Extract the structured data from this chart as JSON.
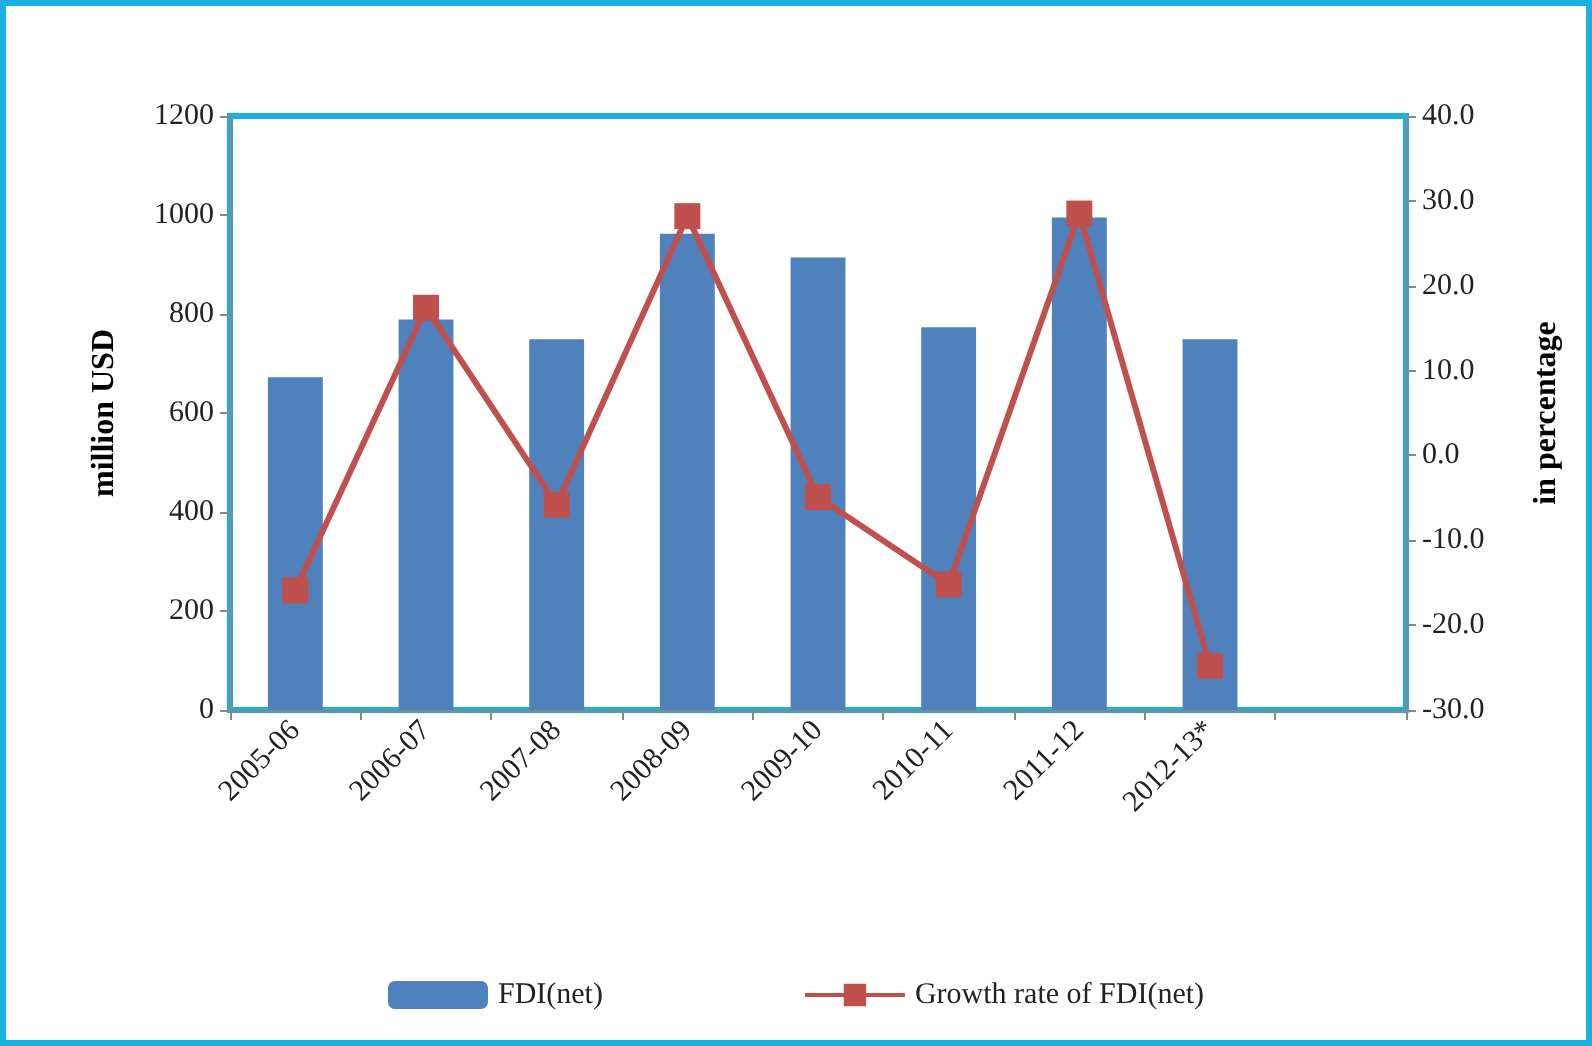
{
  "chart_data": {
    "type": "bar",
    "ylabel": "million USD",
    "y2label": "in percentage",
    "categories": [
      "2005-06",
      "2006-07",
      "2007-08",
      "2008-09",
      "2009-10",
      "2010-11",
      "2011-12",
      "2012-13*",
      null
    ],
    "series": [
      {
        "name": "FDI(net)",
        "color": "#4f81bd",
        "values": [
          672,
          789,
          749,
          962,
          914,
          773,
          995,
          749,
          null
        ]
      },
      {
        "name": "Growth rate of FDI(net)",
        "type": "line",
        "axis": "y2",
        "color": "#c0504d",
        "marker": "square",
        "values": [
          -15.9,
          17.4,
          -5.8,
          28.2,
          -4.9,
          -15.2,
          28.5,
          -24.8,
          null
        ]
      }
    ],
    "ylim": [
      0,
      1200
    ],
    "yticks": [
      0,
      200,
      400,
      600,
      800,
      1000,
      1200
    ],
    "y2lim": [
      -30,
      40
    ],
    "y2ticks": [
      {
        "value": -30,
        "label": "-30.0"
      },
      {
        "value": -20,
        "label": "-20.0"
      },
      {
        "value": -10,
        "label": "-10.0"
      },
      {
        "value": 0,
        "label": "0.0"
      },
      {
        "value": 10,
        "label": "10.0"
      },
      {
        "value": 20,
        "label": "20.0"
      },
      {
        "value": 30,
        "label": "30.0"
      },
      {
        "value": 40,
        "label": "40.0"
      }
    ],
    "grid": false,
    "legend": "bottom"
  }
}
